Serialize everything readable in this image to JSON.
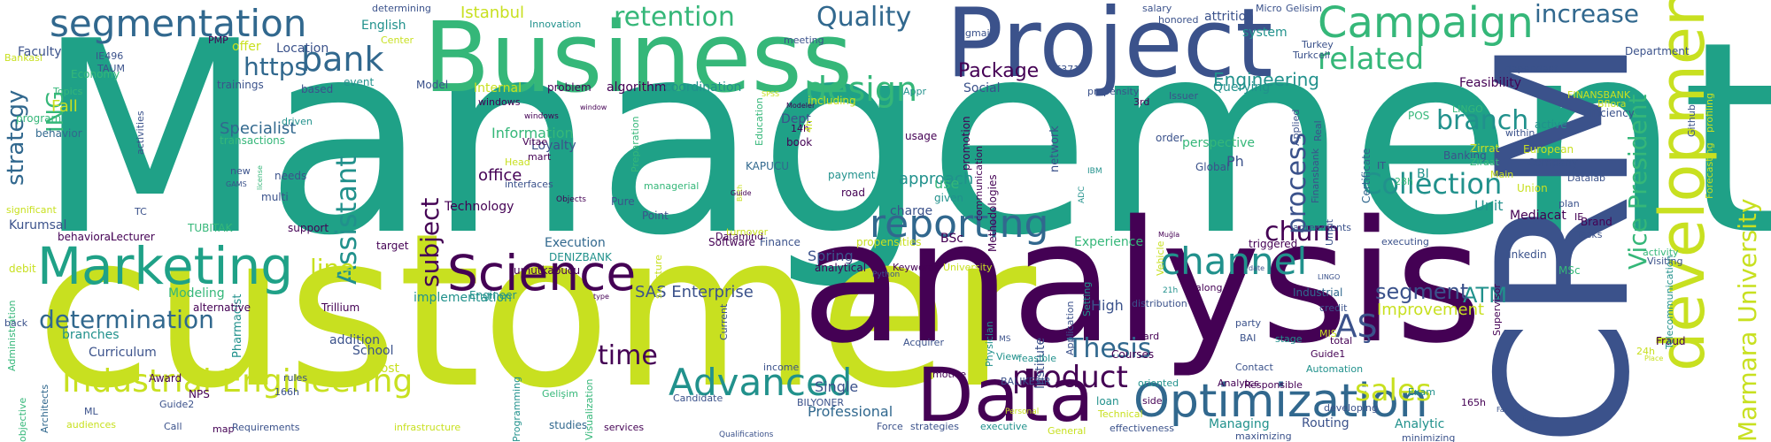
{
  "palette": {
    "dark_purple": "#440154",
    "indigo": "#3b528b",
    "blue": "#31688e",
    "teal": "#21918c",
    "emerald": "#1fa187",
    "green": "#35b779",
    "lime": "#90d743",
    "yellow": "#c8e020"
  },
  "words": [
    "Management",
    "customer",
    "analysis",
    "CRM",
    "Business",
    "Project",
    "Data",
    "development",
    "Marketing",
    "Science",
    "Optimization",
    "segmentation",
    "Campaign",
    "design",
    "reporting",
    "Industrial Engineering",
    "Advanced",
    "product",
    "channel",
    "churn",
    "Collection",
    "bank",
    "related",
    "retention",
    "Quality",
    "increase",
    "Vice President",
    "Marmara University",
    "Assistant",
    "process",
    "determination",
    "strategy",
    "ING",
    "line",
    "subject",
    "sales",
    "AŞ",
    "Thesis",
    "time",
    "branch",
    "Engineering",
    "Package",
    "https",
    "ATM",
    "segment",
    "SAS Enterprise",
    "Istanbul",
    "Improvement",
    "implementation",
    "approach",
    "Specialist",
    "Information",
    "office",
    "Execution",
    "Technology",
    "Modeling",
    "Kurumsal",
    "Experience",
    "Professional",
    "Single",
    "High",
    "Unit",
    "Mediacat",
    "Methodologies",
    "network",
    "algorithm",
    "coordination",
    "Social",
    "Querying",
    "Feasibility",
    "Engineer",
    "Finance",
    "Certificate",
    "Dept",
    "Loyalty",
    "BSc",
    "Spring",
    "Datamind",
    "Routing",
    "Analytic",
    "Managing",
    "Fall",
    "Curriculum",
    "Pharmacist",
    "School",
    "addition",
    "cost",
    "Award",
    "NPS",
    "branches",
    "Lecturer",
    "target",
    "support",
    "behavioral",
    "debit",
    "alternative",
    "Trillium",
    "English",
    "Faculty",
    "Economy",
    "Location",
    "offer",
    "trainings",
    "event",
    "based",
    "Model",
    "Internal",
    "problem",
    "Topics",
    "program",
    "behavior",
    "activities",
    "transactions",
    "needs",
    "multi",
    "significant",
    "TUBITAK",
    "DENIZBANK",
    "umutkapucu",
    "KAPUCU",
    "charge",
    "road",
    "payment",
    "usage",
    "promotion",
    "including",
    "book",
    "14h",
    "4h",
    "Education",
    "Applied",
    "Finansbank",
    "Global",
    "perspective",
    "Ph",
    "IT",
    "28h",
    "BI",
    "Company",
    "European",
    "Union",
    "Main",
    "Datalab",
    "plan",
    "Brand",
    "IE",
    "Tasks",
    "Zirrat",
    "Banking",
    "Efficiency",
    "active",
    "Github",
    "profiling",
    "Forecasting",
    "Department",
    "Fraud",
    "24h",
    "Telecommunication",
    "Visiting",
    "activity",
    "linkedin",
    "MSc",
    "Supervisor",
    "165h",
    "Exam",
    "developing",
    "Responsible",
    "Analytcs",
    "Automation",
    "Guide1",
    "total",
    "credit",
    "Industrial",
    "along",
    "distribution",
    "triggered",
    "executing",
    "agreements",
    "Umut",
    "Vehicle",
    "Courses",
    "Setting",
    "Application",
    "Institute",
    "Physician",
    "View",
    "card",
    "Contact",
    "party",
    "stage",
    "oriented",
    "side",
    "loan",
    "Technical",
    "Acquirer",
    "BALIKESIR",
    "motive",
    "BILYONER",
    "income",
    "Candidate",
    "Current",
    "Programming",
    "Visualization",
    "Software",
    "turnover",
    "structure",
    "Keywords",
    "University",
    "analytical",
    "given",
    "use",
    "communication",
    "Gelisim",
    "Micro",
    "salary",
    "honored",
    "attrition",
    "determining",
    "Innovation",
    "Center",
    "Turkey",
    "Turkcell",
    "system",
    "Issuer",
    "propensity",
    "Appr",
    "meeting",
    "gmail",
    "PMP",
    "IE371",
    "IE496",
    "TAUM",
    "Bankasi",
    "Guide2",
    "ML",
    "166h",
    "rules",
    "Architects",
    "objective",
    "Administration",
    "audiences",
    "Call",
    "map",
    "Requirements",
    "infrastructure",
    "studies",
    "services",
    "Force",
    "strategies",
    "executive",
    "General",
    "effectiveness",
    "maximizing",
    "minimizing",
    "Qualifications",
    "Personal",
    "Gelişim",
    "MIS",
    "BAI",
    "MS",
    "windows",
    "driven",
    "Objects",
    "Head",
    "Pure",
    "Point",
    "Preparation",
    "managerial",
    "feasible",
    "3rd",
    "order",
    "dependent",
    "within",
    "FINANSBANK",
    "LINGO",
    "Bflora",
    "Real",
    "Ziraat",
    "POS",
    "Python",
    "back",
    "new",
    "TC",
    "mart",
    "Vitae",
    "interfaces",
    "GAMS",
    "license",
    "windows",
    "Modeler",
    "SPSS",
    "Birth",
    "Guide",
    "Muğla",
    "21h",
    "ADC",
    "IBM",
    "propensities",
    "window",
    "date",
    "type",
    "LINGO",
    "Tools",
    "Fax",
    "Place"
  ]
}
